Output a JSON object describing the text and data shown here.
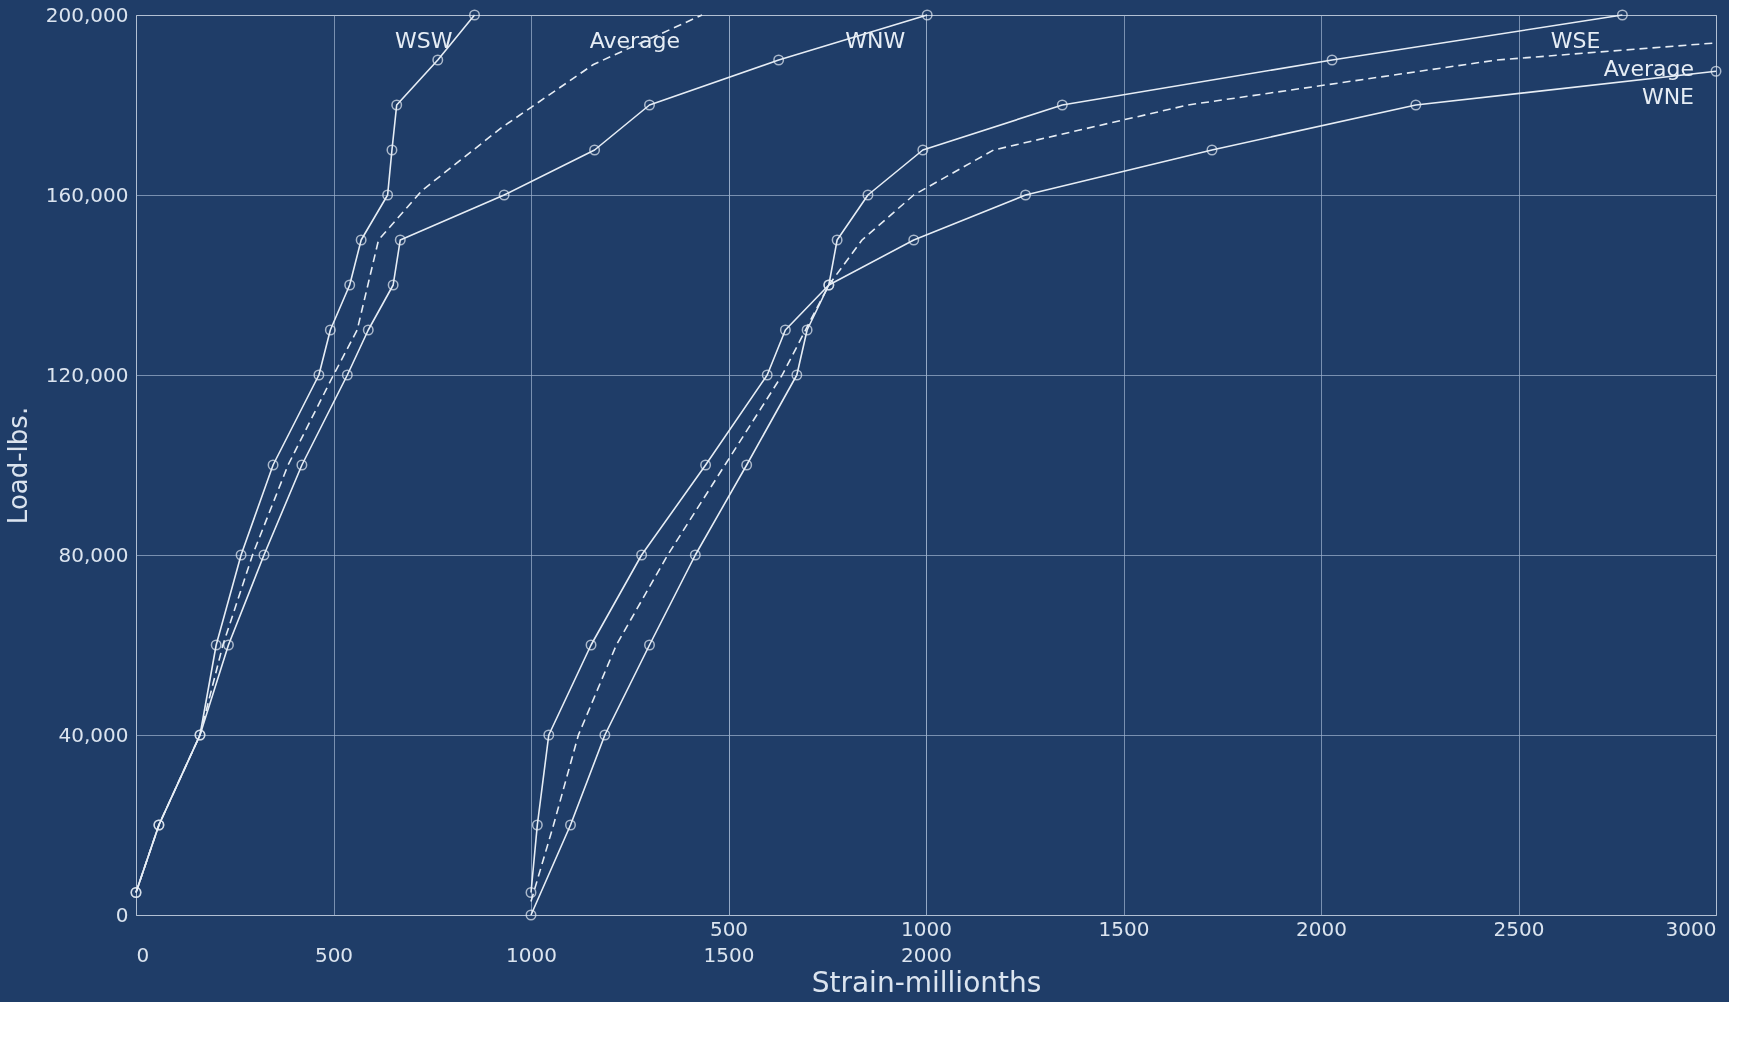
{
  "chart_data": {
    "type": "line",
    "xlabel": "Strain-millionths",
    "ylabel": "Load-lbs.",
    "xlim": [
      0,
      4000
    ],
    "xticks": [
      0,
      500,
      1000,
      1500,
      2000
    ],
    "x2lim": [
      -1000,
      3000
    ],
    "x2ticks": [
      500,
      1000,
      1500,
      2000,
      2500,
      3000
    ],
    "ylim": [
      0,
      200000
    ],
    "yticks": [
      {
        "value": 0,
        "label": "0"
      },
      {
        "value": 40000,
        "label": "40,000"
      },
      {
        "value": 80000,
        "label": "80,000"
      },
      {
        "value": 120000,
        "label": "120,000"
      },
      {
        "value": 160000,
        "label": "160,000"
      },
      {
        "value": 200000,
        "label": "200,000"
      }
    ],
    "grid": true,
    "series": [
      {
        "name": "WSW",
        "color": "#e6edf5",
        "marker": "circle",
        "line_style": "solid",
        "x": [
          0,
          58,
          162,
          203,
          266,
          347,
          463,
          492,
          541,
          570,
          637,
          648,
          660,
          764,
          857
        ],
        "values": [
          5000,
          20000,
          40000,
          60000,
          80000,
          100000,
          120000,
          130000,
          140000,
          150000,
          160000,
          170000,
          180000,
          190000,
          200000
        ]
      },
      {
        "name": "WNW",
        "color": "#e6edf5",
        "marker": "circle",
        "line_style": "solid",
        "x": [
          0,
          58,
          162,
          234,
          324,
          420,
          535,
          588,
          651,
          669,
          932,
          1161,
          1300,
          1627,
          2003
        ],
        "values": [
          5000,
          20000,
          40000,
          60000,
          80000,
          100000,
          120000,
          130000,
          140000,
          150000,
          160000,
          170000,
          180000,
          190000,
          200000
        ]
      },
      {
        "name": "Average",
        "color": "#e6edf5",
        "marker": "none",
        "line_style": "dashed",
        "x": [
          0,
          58,
          162,
          220,
          295,
          385,
          500,
          560,
          614,
          724,
          926,
          1158,
          1433
        ],
        "values": [
          5000,
          20000,
          40000,
          60000,
          80000,
          100000,
          120000,
          130000,
          150000,
          161000,
          175000,
          189000,
          200000
        ]
      },
      {
        "name": "WSE",
        "color": "#e6edf5",
        "marker": "circle",
        "line_style": "solid",
        "axis": "x2",
        "x": [
          0,
          16,
          45,
          152,
          280,
          442,
          598,
          644,
          754,
          775,
          853,
          992,
          1345,
          2028,
          2763
        ],
        "values": [
          5000,
          20000,
          40000,
          60000,
          80000,
          100000,
          120000,
          130000,
          140000,
          150000,
          160000,
          170000,
          180000,
          190000,
          200000
        ]
      },
      {
        "name": "WNE",
        "color": "#e6edf5",
        "marker": "circle",
        "line_style": "solid",
        "axis": "x2",
        "x": [
          0,
          100,
          187,
          300,
          416,
          546,
          673,
          699,
          754,
          969,
          1252,
          1724,
          2240,
          3000
        ],
        "values": [
          0,
          20000,
          40000,
          60000,
          80000,
          100000,
          120000,
          130000,
          140000,
          150000,
          160000,
          170000,
          180000,
          187500
        ]
      },
      {
        "name": "Average",
        "color": "#e6edf5",
        "marker": "none",
        "line_style": "dashed",
        "axis": "x2",
        "x": [
          0,
          57,
          120,
          216,
          346,
          491,
          636,
          754,
          838,
          969,
          1171,
          1663,
          2445,
          3000
        ],
        "values": [
          3000,
          20000,
          40000,
          60000,
          80000,
          100000,
          120000,
          140000,
          150000,
          160000,
          170000,
          180000,
          190000,
          193800
        ]
      }
    ]
  }
}
